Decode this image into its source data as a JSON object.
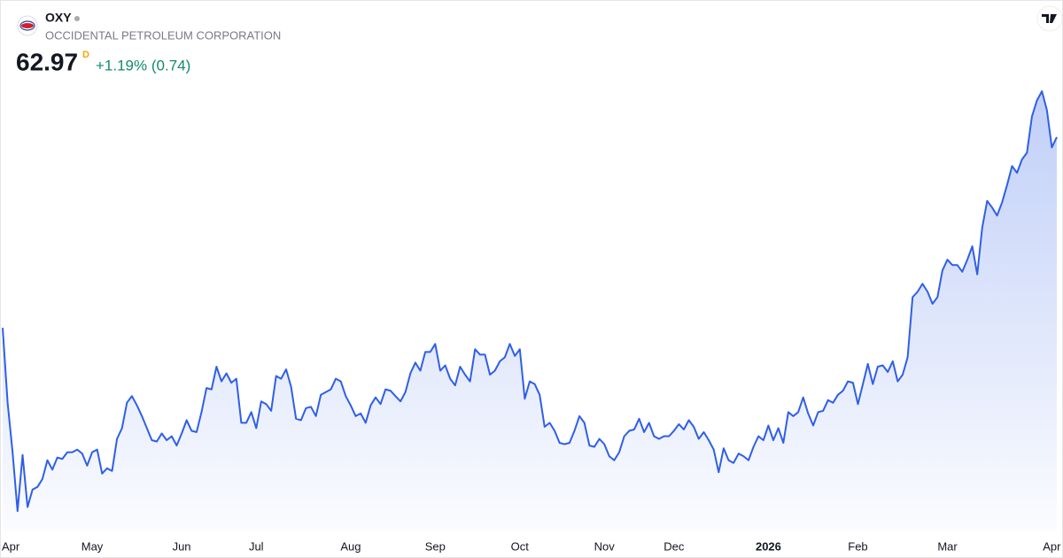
{
  "header": {
    "symbol": "OXY",
    "name": "OCCIDENTAL PETROLEUM CORPORATION",
    "price": "62.97",
    "interval": "D",
    "change": "+1.19% (0.74)"
  },
  "chart_data": {
    "type": "area",
    "color": "#2f5fe8",
    "values": [
      48.7,
      43.1,
      39.4,
      35.0,
      39.2,
      35.3,
      36.6,
      36.8,
      37.4,
      38.8,
      38.1,
      39.0,
      38.9,
      39.4,
      39.4,
      39.6,
      39.3,
      38.4,
      39.4,
      39.6,
      37.8,
      38.2,
      38.0,
      40.4,
      41.2,
      43.1,
      43.6,
      42.9,
      42.1,
      41.2,
      40.3,
      40.2,
      40.8,
      40.3,
      40.6,
      39.9,
      40.8,
      41.8,
      41.0,
      40.9,
      42.4,
      44.2,
      44.1,
      45.8,
      44.7,
      45.3,
      44.6,
      44.9,
      41.6,
      41.6,
      42.4,
      41.2,
      43.2,
      43.0,
      42.5,
      45.1,
      44.9,
      45.6,
      44.3,
      41.9,
      41.8,
      42.7,
      42.8,
      42.1,
      43.7,
      43.9,
      44.1,
      44.9,
      44.7,
      43.6,
      42.9,
      42.1,
      42.3,
      41.6,
      42.9,
      43.5,
      43.0,
      44.1,
      44.0,
      43.6,
      43.2,
      43.9,
      45.3,
      46.1,
      45.5,
      46.9,
      46.9,
      47.5,
      45.5,
      45.9,
      44.9,
      44.4,
      45.8,
      45.2,
      44.7,
      47.1,
      46.7,
      46.7,
      45.2,
      45.5,
      46.2,
      46.5,
      47.5,
      46.6,
      47.1,
      43.4,
      44.7,
      44.5,
      43.7,
      41.3,
      41.6,
      41.0,
      40.1,
      40.0,
      40.1,
      41.0,
      42.1,
      41.6,
      39.9,
      39.8,
      40.4,
      40.0,
      39.1,
      38.8,
      39.4,
      40.6,
      41.0,
      41.1,
      41.9,
      40.9,
      41.6,
      40.6,
      40.4,
      40.6,
      40.6,
      41.0,
      41.5,
      41.1,
      41.8,
      41.3,
      40.4,
      40.9,
      40.3,
      39.6,
      37.9,
      39.7,
      38.8,
      38.6,
      39.3,
      39.1,
      38.8,
      39.8,
      40.6,
      40.3,
      41.4,
      40.3,
      41.2,
      40.1,
      42.4,
      42.1,
      42.4,
      43.5,
      42.3,
      41.4,
      42.4,
      42.5,
      43.3,
      43.1,
      43.7,
      44.0,
      44.7,
      44.6,
      43.0,
      44.5,
      46.0,
      44.5,
      45.8,
      45.9,
      45.4,
      46.2,
      44.7,
      45.2,
      46.5,
      51.0,
      51.4,
      52.0,
      51.4,
      50.5,
      51.0,
      53.0,
      53.8,
      53.4,
      53.4,
      52.9,
      53.8,
      54.8,
      52.7,
      56.2,
      58.2,
      57.7,
      57.1,
      58.1,
      59.4,
      60.8,
      60.3,
      61.3,
      61.8,
      64.5,
      65.7,
      66.4,
      65.0,
      62.2,
      62.97
    ],
    "xticks": [
      {
        "value": 1,
        "label": "Apr"
      },
      {
        "value": 18,
        "label": "May"
      },
      {
        "value": 36,
        "label": "Jun"
      },
      {
        "value": 51,
        "label": "Jul"
      },
      {
        "value": 70,
        "label": "Aug"
      },
      {
        "value": 87,
        "label": "Sep"
      },
      {
        "value": 104,
        "label": "Oct"
      },
      {
        "value": 121,
        "label": "Nov"
      },
      {
        "value": 135,
        "label": "Dec"
      },
      {
        "value": 154,
        "label": "2026",
        "bold": true
      },
      {
        "value": 172,
        "label": "Feb"
      },
      {
        "value": 190,
        "label": "Mar"
      },
      {
        "value": 211,
        "label": "Apr"
      }
    ]
  }
}
